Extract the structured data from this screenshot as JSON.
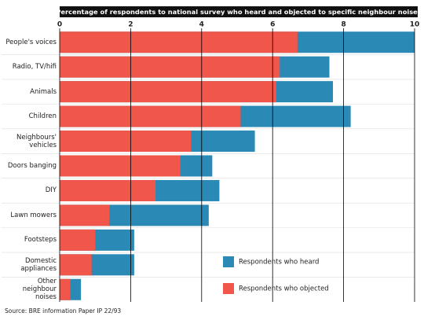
{
  "chart_data": {
    "type": "bar",
    "orientation": "horizontal",
    "overlap": true,
    "title": "Percentage of respondents to national survey who heard and objected to specific neighbour noises",
    "categories": [
      "People's voices",
      "Radio, TV/hifi",
      "Animals",
      "Children",
      "Neighbours' vehicles",
      "Doors banging",
      "DIY",
      "Lawn mowers",
      "Footsteps",
      "Domestic appliances",
      "Other neighbour noises"
    ],
    "series": [
      {
        "name": "Respondents who heard",
        "color": "#2a8ab5",
        "values": [
          10.0,
          7.6,
          7.7,
          8.2,
          5.5,
          4.3,
          4.5,
          4.2,
          2.1,
          2.1,
          0.6
        ]
      },
      {
        "name": "Respondents who objected",
        "color": "#f0564a",
        "values": [
          6.7,
          6.2,
          6.1,
          5.1,
          3.7,
          3.4,
          2.7,
          1.4,
          1.0,
          0.9,
          0.3
        ]
      }
    ],
    "xlim": [
      0,
      10
    ],
    "xticks": [
      0,
      2,
      4,
      6,
      8,
      10
    ],
    "grid": true,
    "legend": "lower right",
    "source": "Source: BRE information Paper IP 22/93"
  }
}
